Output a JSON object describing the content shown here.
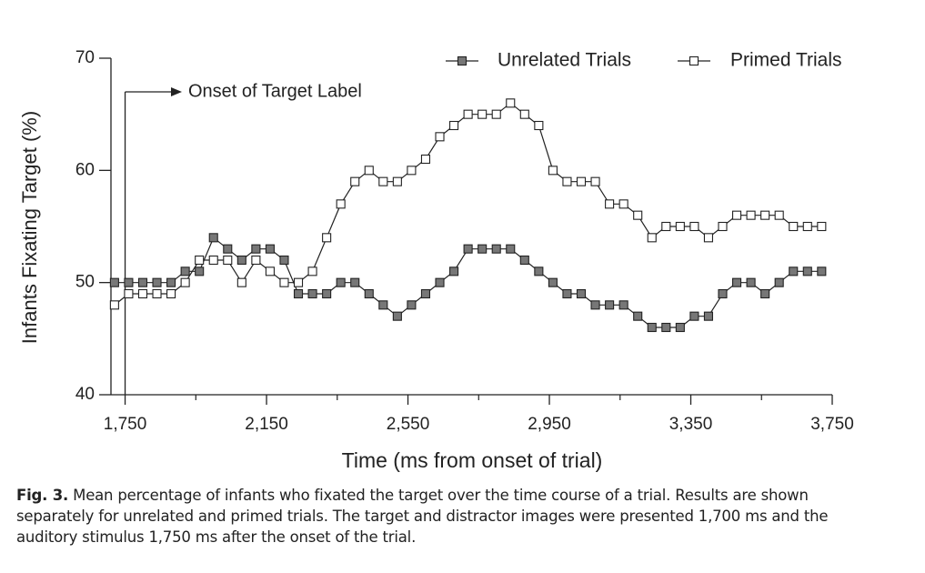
{
  "chart_data": {
    "type": "line",
    "xlabel": "Time (ms from onset of trial)",
    "ylabel": "Infants Fixating Target (%)",
    "x": [
      1720,
      1760,
      1800,
      1840,
      1880,
      1920,
      1960,
      2000,
      2040,
      2080,
      2120,
      2160,
      2200,
      2240,
      2280,
      2320,
      2360,
      2400,
      2440,
      2480,
      2520,
      2560,
      2600,
      2640,
      2680,
      2720,
      2760,
      2800,
      2840,
      2880,
      2920,
      2960,
      3000,
      3040,
      3080,
      3120,
      3160,
      3200,
      3240,
      3280,
      3320,
      3360,
      3400,
      3440,
      3480,
      3520,
      3560,
      3600,
      3640,
      3680,
      3720
    ],
    "series": [
      {
        "name": "Unrelated Trials",
        "color": "#777777",
        "values": [
          50,
          50,
          50,
          50,
          50,
          51,
          51,
          54,
          53,
          52,
          53,
          53,
          52,
          49,
          49,
          49,
          50,
          50,
          49,
          48,
          47,
          48,
          49,
          50,
          51,
          53,
          53,
          53,
          53,
          52,
          51,
          50,
          49,
          49,
          48,
          48,
          48,
          47,
          46,
          46,
          46,
          47,
          47,
          49,
          50,
          50,
          49,
          50,
          51,
          51,
          51
        ]
      },
      {
        "name": "Primed Trials",
        "color": "#ffffff",
        "values": [
          48,
          49,
          49,
          49,
          49,
          50,
          52,
          52,
          52,
          50,
          52,
          51,
          50,
          50,
          51,
          54,
          57,
          59,
          60,
          59,
          59,
          60,
          61,
          63,
          64,
          65,
          65,
          65,
          66,
          65,
          64,
          60,
          59,
          59,
          59,
          57,
          57,
          56,
          54,
          55,
          55,
          55,
          54,
          55,
          56,
          56,
          56,
          56,
          55,
          55,
          55
        ]
      }
    ],
    "xlim": [
      1710,
      3750
    ],
    "ylim": [
      40,
      70
    ],
    "xticks": [
      {
        "value": 1750,
        "label": "1,750"
      },
      {
        "value": 2150,
        "label": "2,150"
      },
      {
        "value": 2550,
        "label": "2,550"
      },
      {
        "value": 2950,
        "label": "2,950"
      },
      {
        "value": 3350,
        "label": "3,350"
      },
      {
        "value": 3750,
        "label": "3,750"
      }
    ],
    "xminorticks": [
      1950,
      2350,
      2750,
      3150,
      3550
    ],
    "yticks": [
      40,
      50,
      60,
      70
    ],
    "legend": "top-right",
    "annotation": {
      "text": "Onset of Target Label",
      "x": 1750
    }
  },
  "caption": {
    "label": "Fig. 3.",
    "text": "Mean percentage of infants who fixated the target over the time course of a trial. Results are shown separately for unrelated and primed trials. The target and distractor images were presented 1,700 ms and the auditory stimulus 1,750 ms after the onset of the trial."
  }
}
